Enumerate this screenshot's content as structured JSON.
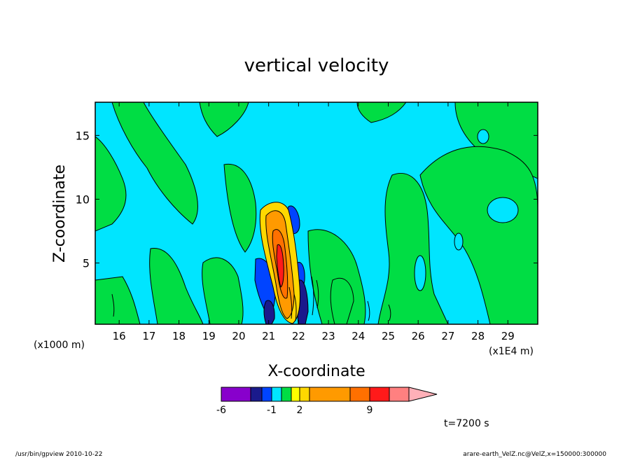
{
  "chart_data": {
    "type": "heatmap",
    "title": "vertical velocity",
    "xlabel": "X-coordinate",
    "ylabel": "Z-coordinate",
    "x_unit_left": "(x1000 m)",
    "x_unit_right": "(x1E4 m)",
    "x_ticks": [
      "16",
      "17",
      "18",
      "19",
      "20",
      "21",
      "22",
      "23",
      "24",
      "25",
      "26",
      "27",
      "28",
      "29"
    ],
    "y_ticks": [
      "5",
      "10",
      "15"
    ],
    "xlim": [
      15.2,
      30.0
    ],
    "ylim": [
      0.2,
      17.6
    ],
    "colorbar": {
      "labels": [
        "-6",
        "-1",
        "2",
        "9"
      ],
      "bins": [
        {
          "color": "#8800cc",
          "value": -6
        },
        {
          "color": "#1a1a8c",
          "value": -3
        },
        {
          "color": "#0044ff",
          "value": -2
        },
        {
          "color": "#00e5ff",
          "value": -1
        },
        {
          "color": "#00dd44",
          "value": 0
        },
        {
          "color": "#ffff00",
          "value": 1
        },
        {
          "color": "#ffd800",
          "value": 2
        },
        {
          "color": "#ff9a00",
          "value": 3
        },
        {
          "color": "#ff7000",
          "value": 6
        },
        {
          "color": "#ff1a1a",
          "value": 9
        },
        {
          "color": "#ff8080",
          "value": 12
        },
        {
          "color": "#ffb0b8",
          "value": 15
        }
      ]
    },
    "colors": {
      "background": "#00e5ff",
      "positive_weak": "#00dd44",
      "negative_strong": "#0044ff",
      "core": "#ff9a00",
      "core_edge": "#ffd800"
    },
    "time_label": "t=7200 s"
  },
  "footer": {
    "left": "/usr/bin/gpview  2010-10-22",
    "right": "arare-earth_VelZ.nc@VelZ,x=150000:300000"
  }
}
